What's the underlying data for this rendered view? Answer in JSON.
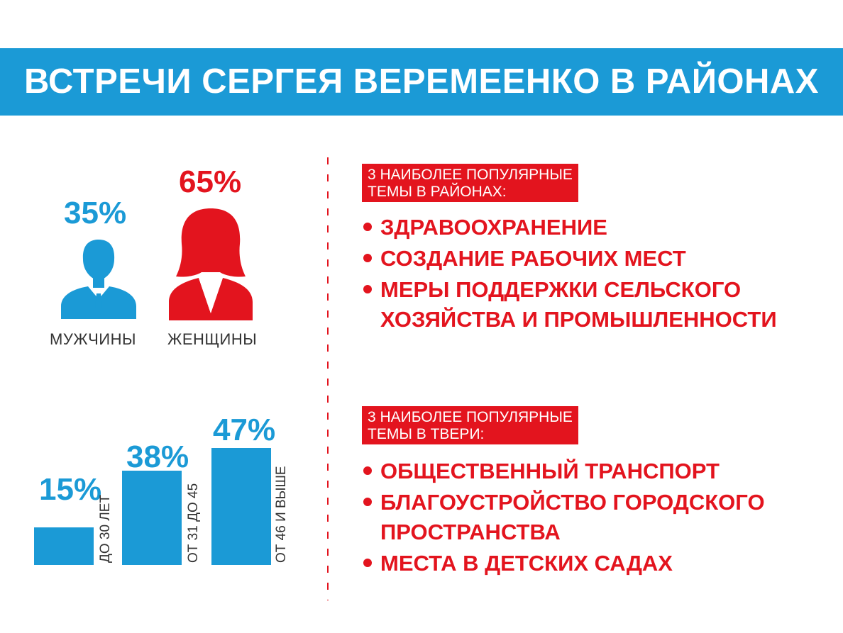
{
  "header": {
    "title": "ВСТРЕЧИ СЕРГЕЯ ВЕРЕМЕЕНКО В РАЙОНАХ"
  },
  "gender": {
    "men": {
      "percent": "35%",
      "label": "МУЖЧИНЫ"
    },
    "women": {
      "percent": "65%",
      "label": "ЖЕНЩИНЫ"
    }
  },
  "age": {
    "groups": [
      {
        "percent": "15%",
        "value": 15,
        "label": "ДО 30 ЛЕТ"
      },
      {
        "percent": "38%",
        "value": 38,
        "label": "ОТ 31 ДО 45"
      },
      {
        "percent": "47%",
        "value": 47,
        "label": "ОТ 46 И ВЫШЕ"
      }
    ]
  },
  "districts": {
    "heading": [
      "3 НАИБОЛЕЕ ПОПУЛЯРНЫЕ",
      "ТЕМЫ В РАЙОНАХ:"
    ],
    "topics": [
      "ЗДРАВООХРАНЕНИЕ",
      "СОЗДАНИЕ РАБОЧИХ МЕСТ",
      "МЕРЫ ПОДДЕРЖКИ СЕЛЬСКОГО",
      "ХОЗЯЙСТВА И ПРОМЫШЛЕННОСТИ"
    ]
  },
  "tver": {
    "heading": [
      "3 НАИБОЛЕЕ ПОПУЛЯРНЫЕ",
      "ТЕМЫ В ТВЕРИ:"
    ],
    "topics": [
      "ОБЩЕСТВЕННЫЙ ТРАНСПОРТ",
      "БЛАГОУСТРОЙСТВО ГОРОДСКОГО",
      "ПРОСТРАНСТВА",
      "МЕСТА В ДЕТСКИХ САДАХ"
    ]
  },
  "colors": {
    "blue": "#1b9ad6",
    "red": "#e3141e"
  }
}
